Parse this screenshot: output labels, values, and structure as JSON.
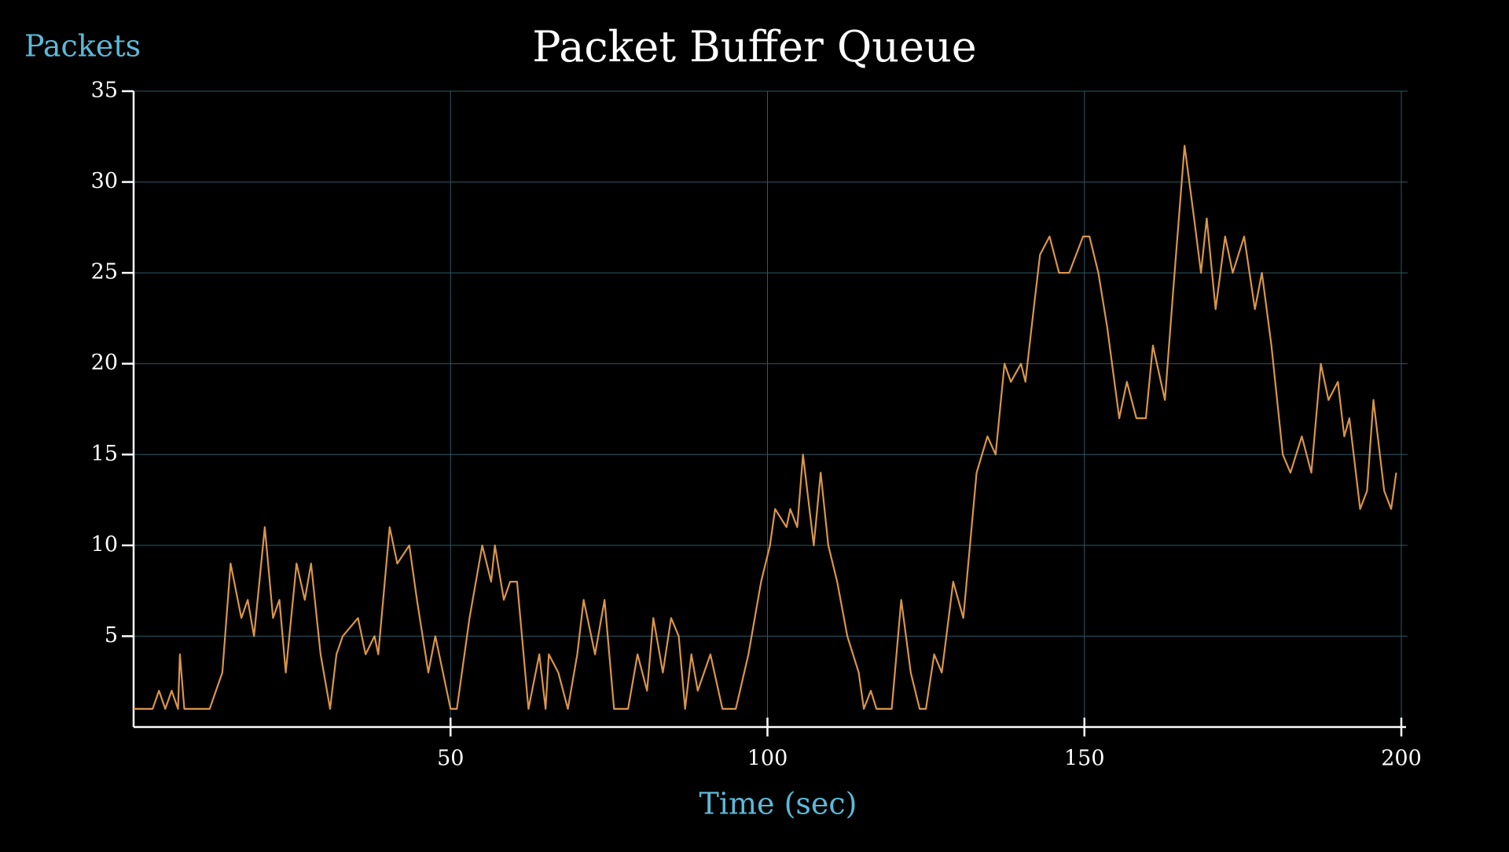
{
  "chart_data": {
    "type": "line",
    "title": "Packet Buffer Queue",
    "ylabel": "Packets",
    "xlabel": "Time (sec)",
    "x": [
      0,
      3,
      4,
      5,
      6,
      7,
      7.3,
      8,
      12,
      13,
      14,
      15.3,
      17,
      18,
      19,
      20.7,
      22,
      23,
      24,
      25.7,
      27,
      28,
      29.5,
      31,
      32,
      33,
      35.4,
      36.6,
      38,
      38.6,
      40.4,
      41.6,
      43.5,
      44.7,
      46.5,
      47.6,
      50,
      51,
      53,
      55,
      56.4,
      57,
      58.4,
      59.4,
      60.5,
      62.3,
      64,
      65,
      65.5,
      67,
      68.5,
      70,
      71,
      72.8,
      74.3,
      75.8,
      78,
      79.5,
      81,
      82,
      83.5,
      84.8,
      86,
      87,
      88,
      89,
      91,
      92.9,
      95,
      97,
      99,
      100.4,
      101.2,
      103,
      103.6,
      104.7,
      105.6,
      107.3,
      108.4,
      109.6,
      111,
      112.6,
      114.4,
      115.2,
      116.3,
      117.2,
      119.6,
      121.1,
      122.6,
      124,
      125,
      126.3,
      127.5,
      129.3,
      130.9,
      133,
      134.7,
      136,
      137.4,
      138.4,
      140,
      140.7,
      142,
      143,
      144.5,
      146,
      147.6,
      149.8,
      150.8,
      152.2,
      153.6,
      155.5,
      156.7,
      158.2,
      159.7,
      160.8,
      162.7,
      164,
      165.8,
      167.3,
      168.4,
      169.3,
      170.7,
      172.2,
      173.4,
      175.2,
      176.9,
      178,
      179.5,
      181.3,
      182.5,
      184.3,
      185.8,
      187.3,
      188.5,
      190,
      191,
      191.8,
      193.5,
      194.6,
      195.6,
      197.3,
      198.4,
      199.2
    ],
    "values": [
      1,
      1,
      2,
      1,
      2,
      1,
      4,
      1,
      1,
      2,
      3,
      9,
      6,
      7,
      5,
      11,
      6,
      7,
      3,
      9,
      7,
      9,
      4,
      1,
      4,
      5,
      6,
      4,
      5,
      4,
      11,
      9,
      10,
      7,
      3,
      5,
      1,
      1,
      6,
      10,
      8,
      10,
      7,
      8,
      8,
      1,
      4,
      1,
      4,
      3,
      1,
      4,
      7,
      4,
      7,
      1,
      1,
      4,
      2,
      6,
      3,
      6,
      5,
      1,
      4,
      2,
      4,
      1,
      1,
      4,
      8,
      10,
      12,
      11,
      12,
      11,
      15,
      10,
      14,
      10,
      8,
      5,
      3,
      1,
      2,
      1,
      1,
      7,
      3,
      1,
      1,
      4,
      3,
      8,
      6,
      14,
      16,
      15,
      20,
      19,
      20,
      19,
      23,
      26,
      27,
      25,
      25,
      27,
      27,
      25,
      22,
      17,
      19,
      17,
      17,
      21,
      18,
      24,
      32,
      28,
      25,
      28,
      23,
      27,
      25,
      27,
      23,
      25,
      21,
      15,
      14,
      16,
      14,
      20,
      18,
      19,
      16,
      17,
      12,
      13,
      18,
      13,
      12,
      14
    ],
    "color": "#d9954a",
    "xlim": [
      0,
      200
    ],
    "ylim": [
      0,
      35
    ],
    "xticks": [
      50,
      100,
      150,
      200
    ],
    "yticks": [
      5,
      10,
      15,
      20,
      25,
      30,
      35
    ],
    "grid": true
  }
}
